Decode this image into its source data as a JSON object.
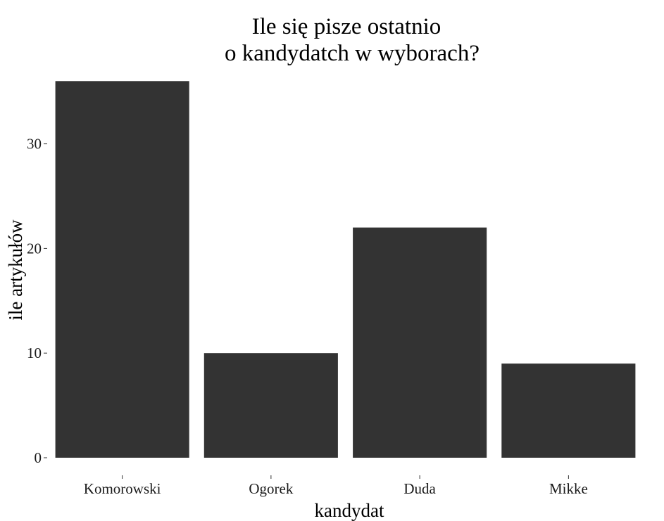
{
  "chart_data": {
    "type": "bar",
    "title": [
      "Ile się pisze ostatnio",
      "o kandydatch w wyborach?"
    ],
    "xlabel": "kandydat",
    "ylabel": "ile artykułów",
    "categories": [
      "Komorowski",
      "Ogorek",
      "Duda",
      "Mikke"
    ],
    "values": [
      36,
      10,
      22,
      9
    ],
    "yticks": [
      0,
      10,
      20,
      30
    ],
    "ylim": [
      -2.5,
      36
    ],
    "grid": false,
    "legend": "none",
    "bar_color": "#333333"
  }
}
